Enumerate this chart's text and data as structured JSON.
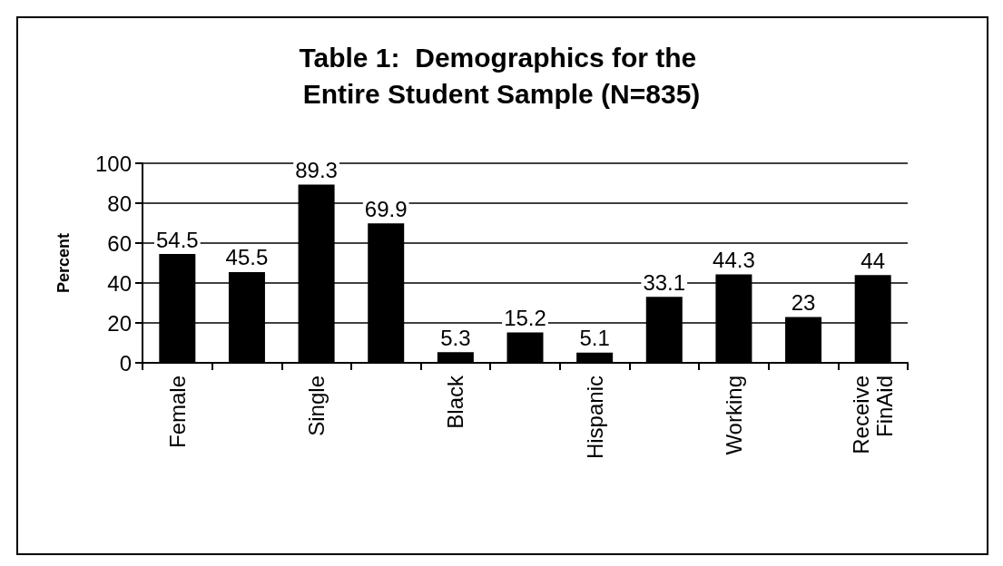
{
  "chart_data": {
    "type": "bar",
    "title": "Table 1:  Demographics for the Entire Student Sample (N=835)",
    "ylabel": "Percent",
    "categories": [
      "Female",
      null,
      "Single",
      null,
      "Black",
      null,
      "Hispanic",
      null,
      "Working",
      null,
      "Receive FinAid"
    ],
    "values": [
      54.5,
      45.5,
      89.3,
      69.9,
      5.3,
      15.2,
      5.1,
      33.1,
      44.3,
      23,
      44
    ],
    "color": "#000000",
    "ylim": [
      0,
      100
    ],
    "yticks": [
      0,
      20,
      40,
      60,
      80,
      100
    ],
    "grid": "y",
    "data_labels": true
  }
}
